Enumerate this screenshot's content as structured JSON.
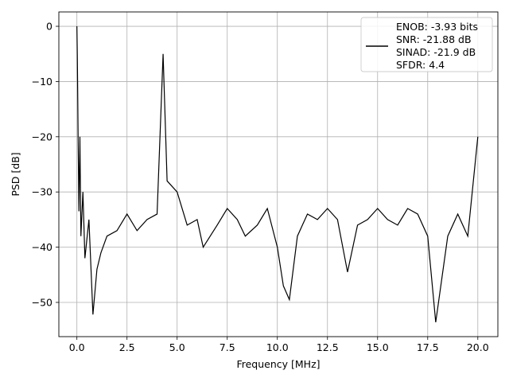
{
  "chart_data": {
    "type": "line",
    "title": "",
    "xlabel": "Frequency [MHz]",
    "ylabel": "PSD [dB]",
    "xlim": [
      -0.9,
      21.0
    ],
    "ylim": [
      -56.2,
      2.6
    ],
    "xticks": [
      0.0,
      2.5,
      5.0,
      7.5,
      10.0,
      12.5,
      15.0,
      17.5,
      20.0
    ],
    "xtick_labels": [
      "0.0",
      "2.5",
      "5.0",
      "7.5",
      "10.0",
      "12.5",
      "15.0",
      "17.5",
      "20.0"
    ],
    "yticks": [
      0,
      -10,
      -20,
      -30,
      -40,
      -50
    ],
    "ytick_labels": [
      "0",
      "−10",
      "−20",
      "−30",
      "−40",
      "−50"
    ],
    "grid": true,
    "line_color": "#000000",
    "legend": {
      "placement": "top-right",
      "lines": [
        "ENOB: -3.93 bits",
        "SNR: -21.88 dB",
        "SINAD: -21.9 dB",
        "SFDR: 4.4"
      ]
    },
    "series": [
      {
        "x": [
          0.0,
          0.02,
          0.04,
          0.06,
          0.1,
          0.15,
          0.2,
          0.3,
          0.4,
          0.6,
          0.8,
          1.0,
          1.2,
          1.5,
          2.0,
          2.5,
          3.0,
          3.5,
          4.0,
          4.3,
          4.5,
          5.0,
          5.5,
          6.0,
          6.3,
          7.0,
          7.5,
          8.0,
          8.4,
          9.0,
          9.5,
          10.0,
          10.3,
          10.6,
          11.0,
          11.5,
          12.0,
          12.5,
          13.0,
          13.5,
          14.0,
          14.5,
          15.0,
          15.5,
          16.0,
          16.5,
          17.0,
          17.5,
          17.9,
          18.5,
          19.0,
          19.5,
          20.0
        ],
        "y": [
          0.0,
          -5.0,
          -12.0,
          -20.0,
          -33.5,
          -20.0,
          -38.0,
          -30.0,
          -42.0,
          -35.0,
          -52.2,
          -44.0,
          -41.0,
          -38.0,
          -37.0,
          -34.0,
          -37.0,
          -35.0,
          -34.0,
          -5.0,
          -28.0,
          -30.0,
          -36.0,
          -35.0,
          -40.0,
          -36.0,
          -33.0,
          -35.0,
          -38.0,
          -36.0,
          -33.0,
          -40.0,
          -47.0,
          -49.5,
          -38.0,
          -34.0,
          -35.0,
          -33.0,
          -35.0,
          -44.5,
          -36.0,
          -35.0,
          -33.0,
          -35.0,
          -36.0,
          -33.0,
          -34.0,
          -38.0,
          -53.6,
          -38.0,
          -34.0,
          -38.0,
          -20.0
        ]
      }
    ]
  }
}
